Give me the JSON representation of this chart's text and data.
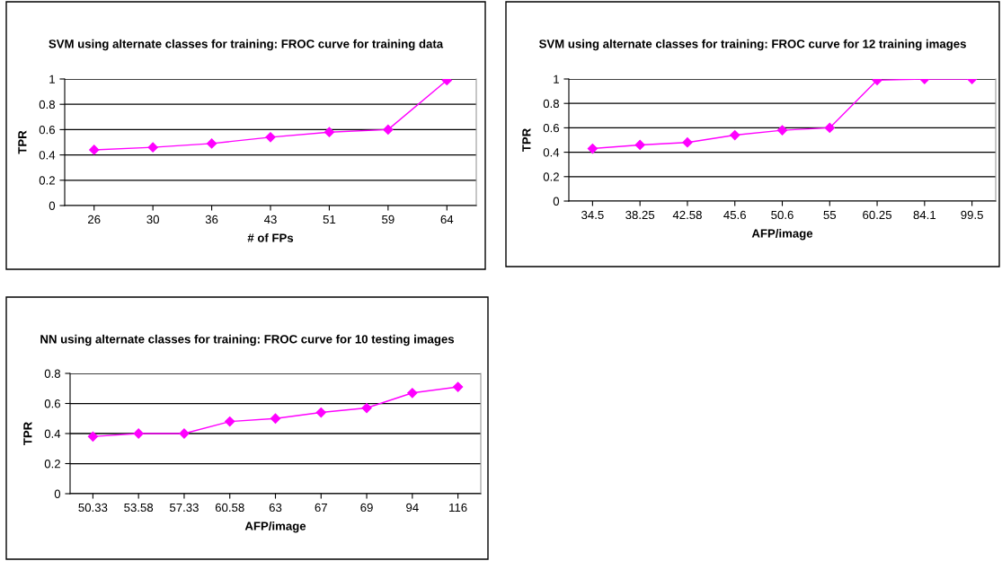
{
  "chart_data": [
    {
      "type": "line",
      "title": "SVM using alternate classes for training: FROC curve for training data",
      "xlabel": "# of FPs",
      "ylabel": "TPR",
      "categories": [
        "26",
        "30",
        "36",
        "43",
        "51",
        "59",
        "64"
      ],
      "series": [
        {
          "color": "#ff00ff",
          "values": [
            0.44,
            0.46,
            0.49,
            0.54,
            0.58,
            0.6,
            0.99
          ]
        }
      ],
      "ylim": [
        0,
        1
      ],
      "yticks": [
        0,
        0.2,
        0.4,
        0.6,
        0.8,
        1
      ],
      "grid": "y",
      "marker": "diamond"
    },
    {
      "type": "line",
      "title": "SVM using alternate classes for training: FROC curve for 12 training images",
      "xlabel": "AFP/image",
      "ylabel": "TPR",
      "categories": [
        "34.5",
        "38.25",
        "42.58",
        "45.6",
        "50.6",
        "55",
        "60.25",
        "84.1",
        "99.5"
      ],
      "series": [
        {
          "color": "#ff00ff",
          "values": [
            0.43,
            0.46,
            0.48,
            0.54,
            0.58,
            0.6,
            0.99,
            1,
            1
          ]
        }
      ],
      "ylim": [
        0,
        1
      ],
      "yticks": [
        0,
        0.2,
        0.4,
        0.6,
        0.8,
        1
      ],
      "grid": "y",
      "marker": "diamond"
    },
    {
      "type": "line",
      "title": "NN using alternate classes for training: FROC curve for 10 testing images",
      "xlabel": "AFP/image",
      "ylabel": "TPR",
      "categories": [
        "50.33",
        "53.58",
        "57.33",
        "60.58",
        "63",
        "67",
        "69",
        "94",
        "116"
      ],
      "series": [
        {
          "color": "#ff00ff",
          "values": [
            0.38,
            0.4,
            0.4,
            0.48,
            0.5,
            0.54,
            0.57,
            0.67,
            0.71
          ]
        }
      ],
      "ylim": [
        0,
        0.8
      ],
      "yticks": [
        0,
        0.2,
        0.4,
        0.6,
        0.8
      ],
      "grid": "y",
      "marker": "diamond"
    }
  ]
}
